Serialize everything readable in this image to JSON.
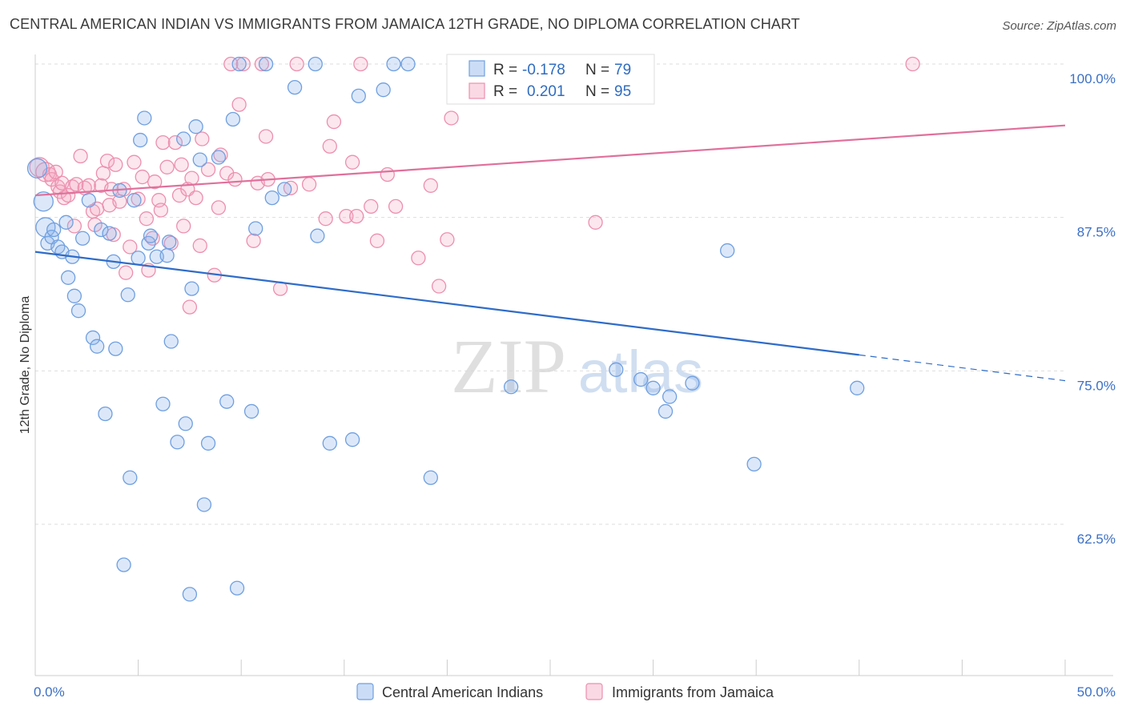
{
  "header": {
    "title": "CENTRAL AMERICAN INDIAN VS IMMIGRANTS FROM JAMAICA 12TH GRADE, NO DIPLOMA CORRELATION CHART",
    "source": "Source: ZipAtlas.com"
  },
  "watermark": {
    "zip": "ZIP",
    "atlas": "atlas"
  },
  "colors": {
    "blue": "#6f9fe0",
    "blue_fill": "rgba(140,180,235,0.30)",
    "blue_line": "#2f6cc8",
    "pink": "#ec8fae",
    "pink_fill": "rgba(245,170,195,0.28)",
    "pink_line": "#e0709a",
    "tick_label": "#3b6fc4",
    "grid": "#dddddd"
  },
  "legend": {
    "r_label": "R =",
    "n_label": "N =",
    "blue": {
      "r": "-0.178",
      "n": "79"
    },
    "pink": {
      "r": "0.201",
      "n": "95"
    }
  },
  "chart_data": {
    "type": "scatter",
    "title": "CENTRAL AMERICAN INDIAN VS IMMIGRANTS FROM JAMAICA 12TH GRADE, NO DIPLOMA CORRELATION CHART",
    "xlabel": "",
    "ylabel": "12th Grade, No Diploma",
    "xlim": [
      0,
      50
    ],
    "ylim": [
      52,
      101
    ],
    "x_tick_labels": [
      "0.0%",
      "50.0%"
    ],
    "y_ticks": [
      62.5,
      75.0,
      87.5,
      100.0
    ],
    "y_tick_labels": [
      "62.5%",
      "75.0%",
      "87.5%",
      "100.0%"
    ],
    "series": [
      {
        "name": "Central American Indians",
        "color": "blue",
        "trend": {
          "x0": 0,
          "y0": 84.7,
          "x1": 40,
          "y1": 76.3,
          "dash_to_x": 50,
          "dash_to_y": 74.2
        },
        "points": [
          [
            0.1,
            91.5
          ],
          [
            0.4,
            88.8
          ],
          [
            0.5,
            86.7
          ],
          [
            0.6,
            85.4
          ],
          [
            0.8,
            85.9
          ],
          [
            0.9,
            86.5
          ],
          [
            1.1,
            85.1
          ],
          [
            1.3,
            84.7
          ],
          [
            1.5,
            87.1
          ],
          [
            1.6,
            82.6
          ],
          [
            1.8,
            84.3
          ],
          [
            1.9,
            81.1
          ],
          [
            2.1,
            79.9
          ],
          [
            2.3,
            85.8
          ],
          [
            2.6,
            88.9
          ],
          [
            2.8,
            77.7
          ],
          [
            3.0,
            77.0
          ],
          [
            3.2,
            86.5
          ],
          [
            3.4,
            71.5
          ],
          [
            3.6,
            86.2
          ],
          [
            3.8,
            83.9
          ],
          [
            3.9,
            76.8
          ],
          [
            4.1,
            89.7
          ],
          [
            4.3,
            59.2
          ],
          [
            4.5,
            81.2
          ],
          [
            4.6,
            66.3
          ],
          [
            4.8,
            88.9
          ],
          [
            5.0,
            84.2
          ],
          [
            5.1,
            93.8
          ],
          [
            5.3,
            95.6
          ],
          [
            5.5,
            85.4
          ],
          [
            5.6,
            86.0
          ],
          [
            5.9,
            84.3
          ],
          [
            6.2,
            72.3
          ],
          [
            6.4,
            84.4
          ],
          [
            6.5,
            85.5
          ],
          [
            6.6,
            77.4
          ],
          [
            6.9,
            69.2
          ],
          [
            7.2,
            93.9
          ],
          [
            7.3,
            70.7
          ],
          [
            7.5,
            56.8
          ],
          [
            7.6,
            81.7
          ],
          [
            7.8,
            94.9
          ],
          [
            8.0,
            92.2
          ],
          [
            8.2,
            64.1
          ],
          [
            8.4,
            69.1
          ],
          [
            8.9,
            92.4
          ],
          [
            9.3,
            72.5
          ],
          [
            9.6,
            95.5
          ],
          [
            9.8,
            57.3
          ],
          [
            9.9,
            100.0
          ],
          [
            10.5,
            71.7
          ],
          [
            10.7,
            86.6
          ],
          [
            11.2,
            100.0
          ],
          [
            11.5,
            89.1
          ],
          [
            12.1,
            89.8
          ],
          [
            12.6,
            98.1
          ],
          [
            13.6,
            100.0
          ],
          [
            13.7,
            86.0
          ],
          [
            14.3,
            69.1
          ],
          [
            15.4,
            69.4
          ],
          [
            15.7,
            97.4
          ],
          [
            16.9,
            97.9
          ],
          [
            17.4,
            100.0
          ],
          [
            18.1,
            100.0
          ],
          [
            19.2,
            66.3
          ],
          [
            23.1,
            73.7
          ],
          [
            28.2,
            75.1
          ],
          [
            29.4,
            74.3
          ],
          [
            30.0,
            73.6
          ],
          [
            30.6,
            71.7
          ],
          [
            30.8,
            72.9
          ],
          [
            31.9,
            74.0
          ],
          [
            33.6,
            84.8
          ],
          [
            34.9,
            67.4
          ],
          [
            39.9,
            73.6
          ]
        ]
      },
      {
        "name": "Immigrants from Jamaica",
        "color": "pink",
        "trend": {
          "x0": 0,
          "y0": 89.3,
          "x1": 50,
          "y1": 95.0
        },
        "points": [
          [
            0.2,
            91.6
          ],
          [
            0.5,
            91.2
          ],
          [
            0.7,
            91.0
          ],
          [
            0.8,
            90.6
          ],
          [
            1.0,
            91.2
          ],
          [
            1.1,
            90.0
          ],
          [
            1.2,
            89.6
          ],
          [
            1.3,
            90.3
          ],
          [
            1.4,
            89.1
          ],
          [
            1.6,
            89.3
          ],
          [
            1.8,
            90.0
          ],
          [
            1.9,
            86.8
          ],
          [
            2.0,
            90.2
          ],
          [
            2.2,
            92.5
          ],
          [
            2.4,
            89.9
          ],
          [
            2.6,
            90.1
          ],
          [
            2.8,
            88.0
          ],
          [
            2.9,
            86.9
          ],
          [
            3.0,
            88.2
          ],
          [
            3.2,
            90.1
          ],
          [
            3.3,
            91.1
          ],
          [
            3.5,
            92.1
          ],
          [
            3.6,
            88.5
          ],
          [
            3.7,
            89.8
          ],
          [
            3.8,
            86.1
          ],
          [
            3.9,
            91.8
          ],
          [
            4.1,
            88.8
          ],
          [
            4.3,
            89.8
          ],
          [
            4.4,
            83.0
          ],
          [
            4.6,
            85.1
          ],
          [
            4.8,
            92.0
          ],
          [
            5.0,
            89.0
          ],
          [
            5.2,
            90.8
          ],
          [
            5.4,
            87.4
          ],
          [
            5.5,
            83.2
          ],
          [
            5.7,
            85.8
          ],
          [
            5.8,
            90.4
          ],
          [
            6.0,
            88.9
          ],
          [
            6.1,
            88.1
          ],
          [
            6.2,
            93.6
          ],
          [
            6.4,
            91.6
          ],
          [
            6.6,
            85.4
          ],
          [
            6.8,
            93.6
          ],
          [
            7.0,
            89.3
          ],
          [
            7.1,
            91.8
          ],
          [
            7.2,
            86.8
          ],
          [
            7.4,
            89.8
          ],
          [
            7.5,
            80.2
          ],
          [
            7.6,
            90.7
          ],
          [
            7.8,
            89.1
          ],
          [
            8.0,
            85.2
          ],
          [
            8.1,
            93.9
          ],
          [
            8.4,
            91.4
          ],
          [
            8.7,
            82.8
          ],
          [
            8.9,
            88.3
          ],
          [
            9.0,
            92.6
          ],
          [
            9.3,
            91.1
          ],
          [
            9.5,
            100.0
          ],
          [
            9.7,
            90.6
          ],
          [
            9.9,
            96.7
          ],
          [
            10.1,
            100.0
          ],
          [
            10.6,
            85.6
          ],
          [
            10.8,
            90.3
          ],
          [
            11.0,
            100.0
          ],
          [
            11.2,
            94.1
          ],
          [
            11.3,
            90.6
          ],
          [
            11.9,
            81.7
          ],
          [
            12.4,
            89.9
          ],
          [
            12.7,
            100.0
          ],
          [
            13.3,
            90.2
          ],
          [
            14.1,
            87.4
          ],
          [
            14.3,
            93.3
          ],
          [
            14.5,
            95.3
          ],
          [
            15.1,
            87.6
          ],
          [
            15.4,
            92.0
          ],
          [
            15.6,
            87.6
          ],
          [
            15.8,
            100.0
          ],
          [
            16.3,
            88.4
          ],
          [
            16.6,
            85.6
          ],
          [
            17.1,
            91.0
          ],
          [
            17.5,
            88.4
          ],
          [
            18.6,
            84.2
          ],
          [
            19.2,
            90.1
          ],
          [
            19.6,
            81.9
          ],
          [
            20.0,
            85.7
          ],
          [
            20.2,
            95.6
          ],
          [
            20.4,
            100.0
          ],
          [
            27.2,
            87.1
          ],
          [
            42.6,
            100.0
          ]
        ]
      }
    ]
  },
  "bottom_legend": {
    "blue_label": "Central American Indians",
    "pink_label": "Immigrants from Jamaica"
  }
}
